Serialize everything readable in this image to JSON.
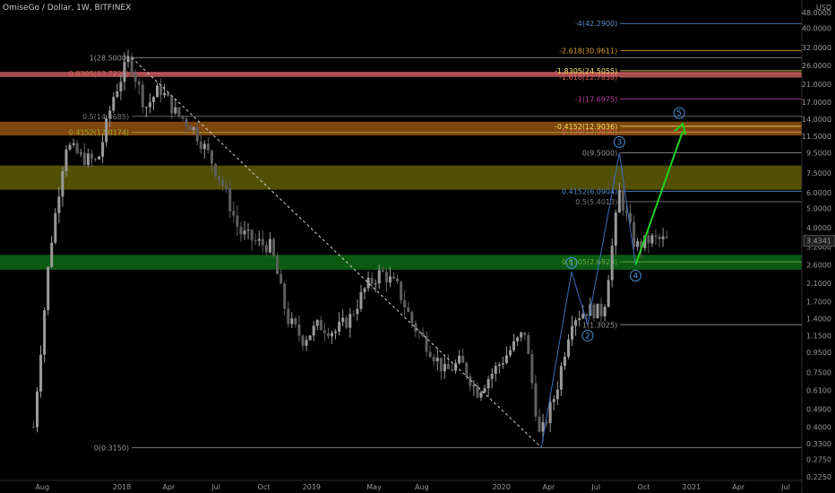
{
  "header": {
    "title": "OmiseGo / Dollar, 1W, BITFINEX"
  },
  "chart_data": {
    "type": "candlestick",
    "title": "OmiseGo / Dollar, 1W, BITFINEX",
    "yscale": "log",
    "ylim": [
      0.22,
      48
    ],
    "y_ticks": [
      "48.0000",
      "40.0000",
      "32.0000",
      "26.0000",
      "21.0000",
      "17.0000",
      "14.0000",
      "11.5000",
      "9.5000",
      "7.5000",
      "6.0000",
      "5.0000",
      "4.0000",
      "3.2000",
      "2.6000",
      "2.1000",
      "1.7000",
      "1.4000",
      "1.1500",
      "0.9500",
      "0.7500",
      "0.6100",
      "0.4900",
      "0.4000",
      "0.3300",
      "0.2750",
      "0.2250"
    ],
    "y_unit": "USD",
    "x_ticks": [
      "Aug",
      "2018",
      "Apr",
      "Jul",
      "Oct",
      "2019",
      "May",
      "Aug",
      "2020",
      "Apr",
      "Jul",
      "Oct",
      "2021",
      "Apr",
      "Jul"
    ],
    "last_price": "3.4341",
    "price_path": [
      [
        "2017-07",
        0.4
      ],
      [
        "2017-08",
        3.0
      ],
      [
        "2017-09",
        10.5
      ],
      [
        "2017-10",
        9.0
      ],
      [
        "2017-11",
        8.5
      ],
      [
        "2017-12",
        18.0
      ],
      [
        "2018-01",
        28.5
      ],
      [
        "2018-02",
        16.0
      ],
      [
        "2018-03",
        20.0
      ],
      [
        "2018-04",
        15.0
      ],
      [
        "2018-05",
        13.0
      ],
      [
        "2018-06",
        9.5
      ],
      [
        "2018-07",
        6.5
      ],
      [
        "2018-08",
        3.8
      ],
      [
        "2018-09",
        3.4
      ],
      [
        "2018-10",
        3.2
      ],
      [
        "2018-11",
        1.4
      ],
      [
        "2018-12",
        1.1
      ],
      [
        "2019-01",
        1.3
      ],
      [
        "2019-02",
        1.2
      ],
      [
        "2019-03",
        1.4
      ],
      [
        "2019-04",
        2.0
      ],
      [
        "2019-05",
        2.4
      ],
      [
        "2019-06",
        2.0
      ],
      [
        "2019-07",
        1.3
      ],
      [
        "2019-08",
        1.0
      ],
      [
        "2019-09",
        0.75
      ],
      [
        "2019-10",
        0.85
      ],
      [
        "2019-11",
        0.6
      ],
      [
        "2019-12",
        0.75
      ],
      [
        "2020-01",
        0.95
      ],
      [
        "2020-02",
        1.2
      ],
      [
        "2020-03",
        0.35
      ],
      [
        "2020-04",
        0.6
      ],
      [
        "2020-05",
        1.4
      ],
      [
        "2020-06",
        1.55
      ],
      [
        "2020-07",
        1.5
      ],
      [
        "2020-08",
        6.0
      ],
      [
        "2020-09",
        3.2
      ],
      [
        "2020-10",
        3.5
      ],
      [
        "2020-11",
        3.43
      ]
    ],
    "zones": [
      {
        "low": 22.8,
        "high": 24.2,
        "color": "#d86464"
      },
      {
        "low": 11.6,
        "high": 13.6,
        "color": "#a85c12"
      },
      {
        "low": 6.2,
        "high": 8.2,
        "color": "#6e6a0a"
      },
      {
        "low": 2.46,
        "high": 2.92,
        "color": "#0f7a1a"
      }
    ],
    "fib_retracement": [
      {
        "label": "1(28.5000)",
        "value": 28.5,
        "color": "#9a9a9a"
      },
      {
        "label": "0.8305(23.7228)",
        "value": 23.7228,
        "color": "#d86464"
      },
      {
        "label": "0.5(14.4685)",
        "value": 14.4685,
        "color": "#7c7c7c"
      },
      {
        "label": "0.4152(12.0174)",
        "value": 12.0174,
        "color": "#a0b030"
      },
      {
        "label": "0(0.3150)",
        "value": 0.315,
        "color": "#9a9a9a"
      }
    ],
    "fib_extension": [
      {
        "label": "-4(42.2900)",
        "value": 42.29,
        "color": "#5a8fd0"
      },
      {
        "label": "-2.618(30.9611)",
        "value": 30.9611,
        "color": "#e0a030"
      },
      {
        "label": "-1.8305(24.5055)",
        "value": 24.5055,
        "color": "#f0e060"
      },
      {
        "label": "-1.618(22.7838)",
        "value": 22.7838,
        "color": "#d86464"
      },
      {
        "label": "-1(17.6975)",
        "value": 17.6975,
        "color": "#c040a0"
      },
      {
        "label": "-0.4152(12.9036)",
        "value": 12.9036,
        "color": "#f0e060"
      },
      {
        "label": "-0.309(12.0830)",
        "value": 12.083,
        "color": "#d86464"
      },
      {
        "label": "0(9.5000)",
        "value": 9.5,
        "color": "#9a9a9a"
      },
      {
        "label": "0.4152(6.0904)",
        "value": 6.0904,
        "color": "#5a8fd0"
      },
      {
        "label": "0.5(5.4013)",
        "value": 5.4013,
        "color": "#7c7c7c"
      },
      {
        "label": "0.8305(2.6920)",
        "value": 2.692,
        "color": "#6fb040"
      },
      {
        "label": "1(1.3025)",
        "value": 1.3025,
        "color": "#9a9a9a"
      }
    ],
    "waves": [
      {
        "label": "1",
        "date": "2020-05",
        "price": 2.4
      },
      {
        "label": "2",
        "date": "2020-06",
        "price": 1.3
      },
      {
        "label": "3",
        "date": "2020-08",
        "price": 9.5
      },
      {
        "label": "4",
        "date": "2020-09",
        "price": 2.6
      },
      {
        "label": "5",
        "date": "2020-12",
        "price": 13.0
      }
    ],
    "colors": {
      "up": "#9a9a9a",
      "down": "#5e5e5e",
      "background": "#000000",
      "projection": "#1ed41e"
    }
  }
}
